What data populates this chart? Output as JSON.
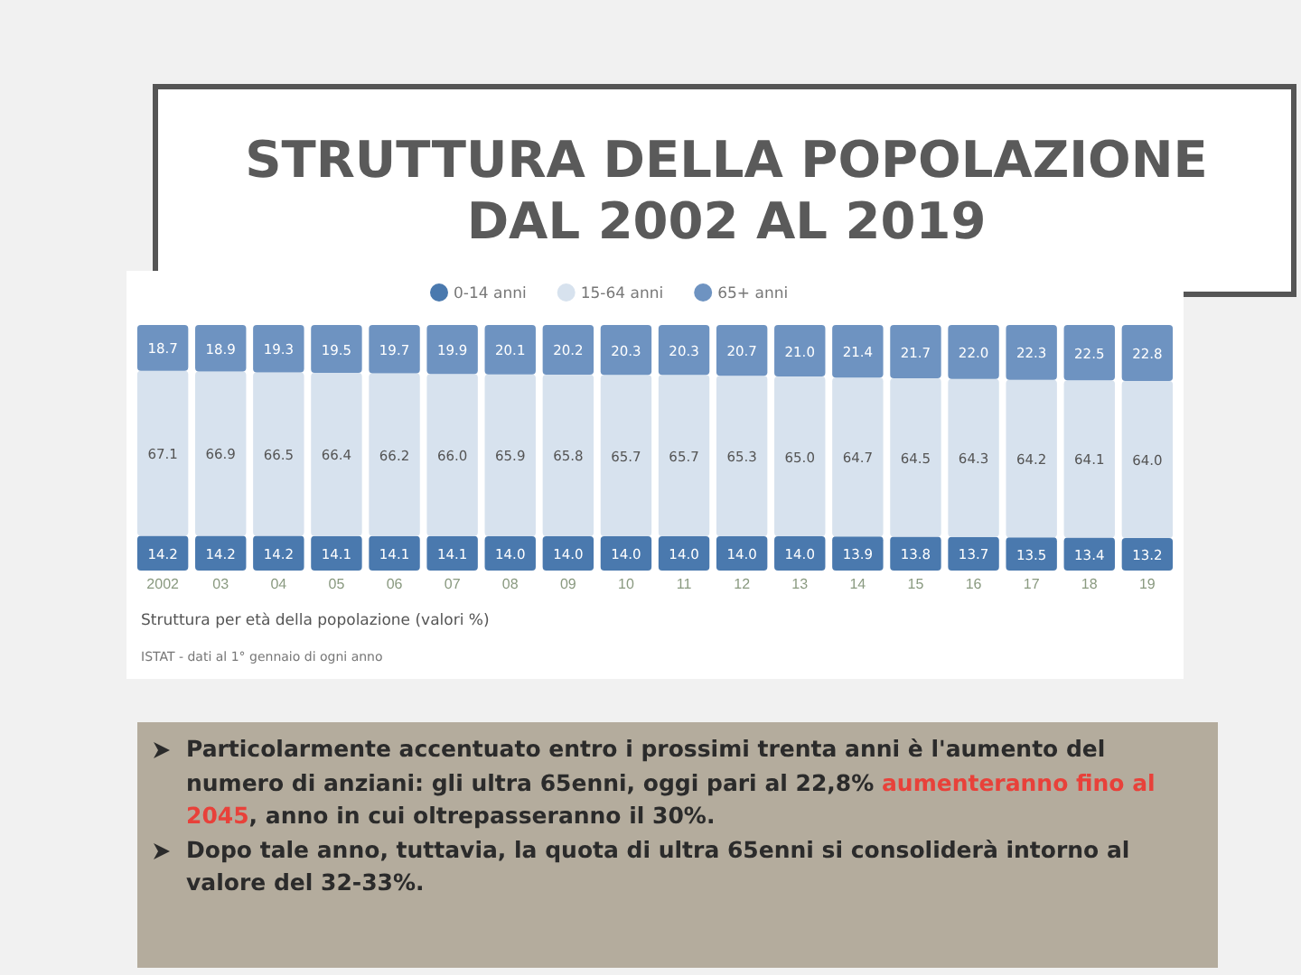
{
  "chart_data": {
    "type": "bar",
    "stacked": true,
    "title": "STRUTTURA DELLA POPOLAZIONE DAL 2002 AL 2019",
    "categories": [
      "2002",
      "03",
      "04",
      "05",
      "06",
      "07",
      "08",
      "09",
      "10",
      "11",
      "12",
      "13",
      "14",
      "15",
      "16",
      "17",
      "18",
      "19"
    ],
    "series": [
      {
        "name": "0-14 anni",
        "color": "#4a79ae",
        "values": [
          14.2,
          14.2,
          14.2,
          14.1,
          14.1,
          14.1,
          14.0,
          14.0,
          14.0,
          14.0,
          14.0,
          14.0,
          13.9,
          13.8,
          13.7,
          13.5,
          13.4,
          13.2
        ],
        "value_labels": [
          "14.2",
          "14.2",
          "14.2",
          "14.1",
          "14.1",
          "14.1",
          "14.0",
          "14.0",
          "14.0",
          "14.0",
          "14.0",
          "14.0",
          "13.9",
          "13.8",
          "13.7",
          "13.5",
          "13.4",
          "13.2"
        ]
      },
      {
        "name": "15-64 anni",
        "color": "#d7e2ee",
        "values": [
          67.1,
          66.9,
          66.5,
          66.4,
          66.2,
          66.0,
          65.9,
          65.8,
          65.7,
          65.7,
          65.3,
          65.0,
          64.7,
          64.5,
          64.3,
          64.2,
          64.1,
          64.0
        ],
        "value_labels": [
          "67.1",
          "66.9",
          "66.5",
          "66.4",
          "66.2",
          "66.0",
          "65.9",
          "65.8",
          "65.7",
          "65.7",
          "65.3",
          "65.0",
          "64.7",
          "64.5",
          "64.3",
          "64.2",
          "64.1",
          "64.0"
        ]
      },
      {
        "name": "65+ anni",
        "color": "#6e93c1",
        "values": [
          18.7,
          18.9,
          19.3,
          19.5,
          19.7,
          19.9,
          20.1,
          20.2,
          20.3,
          20.3,
          20.7,
          21.0,
          21.4,
          21.7,
          22.0,
          22.3,
          22.5,
          22.8
        ],
        "value_labels": [
          "18.7",
          "18.9",
          "19.3",
          "19.5",
          "19.7",
          "19.9",
          "20.1",
          "20.2",
          "20.3",
          "20.3",
          "20.7",
          "21.0",
          "21.4",
          "21.7",
          "22.0",
          "22.3",
          "22.5",
          "22.8"
        ]
      }
    ],
    "ylim": [
      0,
      100
    ],
    "tick_labels": "x",
    "legend": "top",
    "annotations": [
      "Struttura per età della popolazione (valori %)",
      "ISTAT - dati al 1° gennaio di ogni anno",
      "Particolarmente accentuato entro i prossimi trenta anni è l'aumento del numero di anziani: gli ultra 65enni, oggi pari al 22,8%",
      "aumenteranno fino al 2045",
      ", anno in cui oltrepasseranno il 30%.",
      "Dopo tale anno, tuttavia, la quota di ultra 65enni si consoliderà intorno al valore del 32-33%."
    ]
  }
}
